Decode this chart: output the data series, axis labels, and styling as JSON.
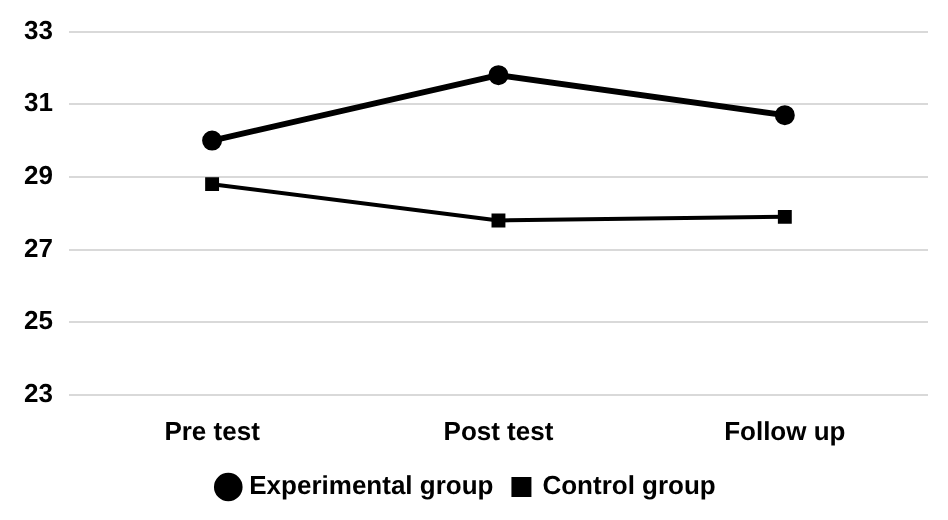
{
  "chart_data": {
    "type": "line",
    "categories": [
      "Pre test",
      "Post test",
      "Follow up"
    ],
    "series": [
      {
        "name": "Experimental group",
        "color": "#000000",
        "marker": "circle",
        "values": [
          30.0,
          31.8,
          30.7
        ]
      },
      {
        "name": "Control group",
        "color": "#000000",
        "marker": "square",
        "values": [
          28.8,
          27.8,
          27.9
        ]
      }
    ],
    "ylim": [
      23,
      33
    ],
    "yticks": [
      23,
      25,
      27,
      29,
      31,
      33
    ],
    "grid": "y",
    "legend": "bottom"
  }
}
